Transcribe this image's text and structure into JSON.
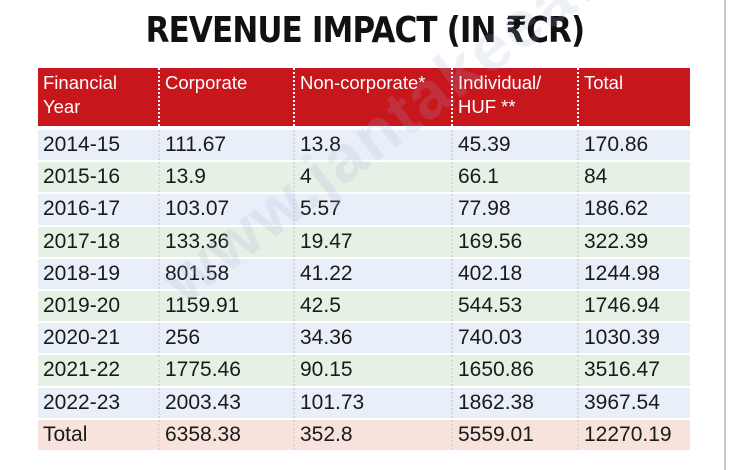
{
  "title": "REVENUE IMPACT (IN ₹CR)",
  "watermark": "www.jantakeeawaz.com",
  "colors": {
    "header_bg": "#c8161d",
    "row_blue": "#e9eff8",
    "row_green": "#e6f1e6",
    "row_total": "#f7e2dc"
  },
  "headers": [
    "Financial Year",
    "Corporate",
    "Non-corporate*",
    "Individual/ HUF **",
    "Total"
  ],
  "rows": [
    [
      "2014-15",
      "111.67",
      "13.8",
      "45.39",
      "170.86"
    ],
    [
      "2015-16",
      "13.9",
      "4",
      "66.1",
      "84"
    ],
    [
      "2016-17",
      "103.07",
      "5.57",
      "77.98",
      "186.62"
    ],
    [
      "2017-18",
      "133.36",
      "19.47",
      "169.56",
      "322.39"
    ],
    [
      "2018-19",
      "801.58",
      "41.22",
      "402.18",
      "1244.98"
    ],
    [
      "2019-20",
      "1159.91",
      "42.5",
      "544.53",
      "1746.94"
    ],
    [
      "2020-21",
      "256",
      "34.36",
      "740.03",
      "1030.39"
    ],
    [
      "2021-22",
      "1775.46",
      "90.15",
      "1650.86",
      "3516.47"
    ],
    [
      "2022-23",
      "2003.43",
      "101.73",
      "1862.38",
      "3967.54"
    ]
  ],
  "total": [
    "Total",
    "6358.38",
    "352.8",
    "5559.01",
    "12270.19"
  ]
}
